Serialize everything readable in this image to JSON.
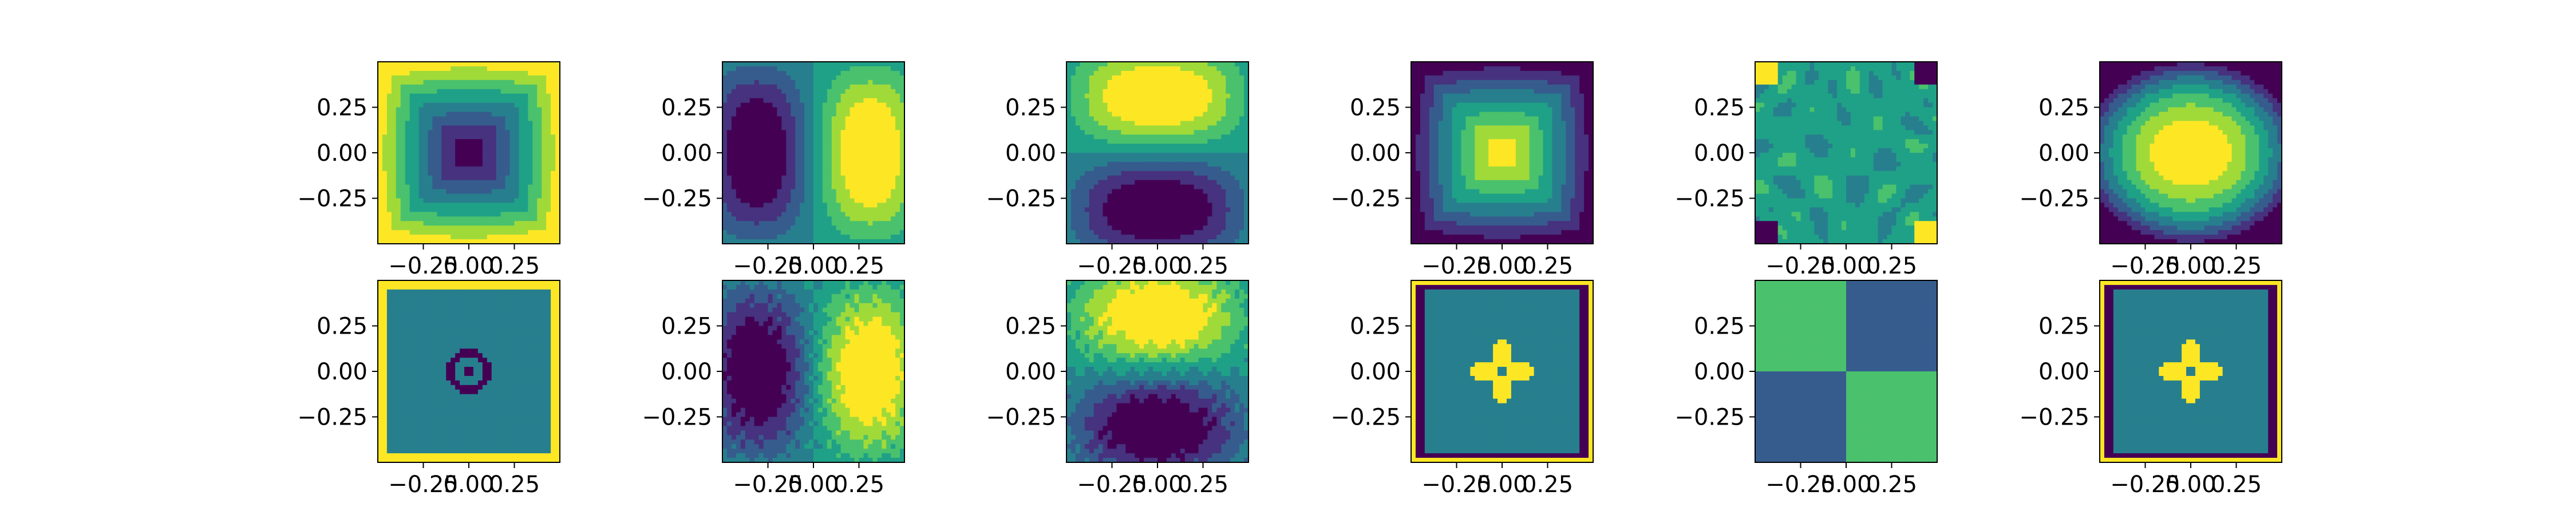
{
  "chart_data": {
    "type": "heatmap",
    "description_free": true,
    "rows": 2,
    "cols": 6,
    "shared_axes": {
      "xlim": [
        -0.5,
        0.5
      ],
      "ylim": [
        -0.5,
        0.5
      ],
      "x_ticks": [
        -0.25,
        0.0,
        0.25
      ],
      "x_tick_labels": [
        "−0.25",
        "0.00",
        "0.25"
      ],
      "y_ticks": [
        0.25,
        0.0,
        -0.25
      ],
      "y_tick_labels": [
        "0.25",
        "0.00",
        "−0.25"
      ]
    },
    "colormap": [
      "#440154",
      "#46327e",
      "#365c8d",
      "#277f8e",
      "#1fa187",
      "#4ac16d",
      "#a0da39",
      "#fde725"
    ],
    "panels": [
      {
        "id": "r1c1",
        "pattern": "bowl",
        "params": {
          "sign": 1,
          "nx": 1,
          "ny": 1
        }
      },
      {
        "id": "r1c2",
        "pattern": "dipole_x",
        "params": {}
      },
      {
        "id": "r1c3",
        "pattern": "dipole_y",
        "params": {}
      },
      {
        "id": "r1c4",
        "pattern": "bowl",
        "params": {
          "sign": -1
        }
      },
      {
        "id": "r1c5",
        "pattern": "noise_corners",
        "params": {}
      },
      {
        "id": "r1c6",
        "pattern": "bowl",
        "params": {
          "sign": -1,
          "wide": 1
        }
      },
      {
        "id": "r2c1",
        "pattern": "steps_plus",
        "params": {}
      },
      {
        "id": "r2c2",
        "pattern": "dipole_x",
        "params": {
          "noisy": 1
        }
      },
      {
        "id": "r2c3",
        "pattern": "dipole_y",
        "params": {
          "noisy": 1
        }
      },
      {
        "id": "r2c4",
        "pattern": "flower",
        "params": {}
      },
      {
        "id": "r2c5",
        "pattern": "quadrants",
        "params": {}
      },
      {
        "id": "r2c6",
        "pattern": "flower",
        "params": {
          "wide": 1
        }
      }
    ]
  }
}
